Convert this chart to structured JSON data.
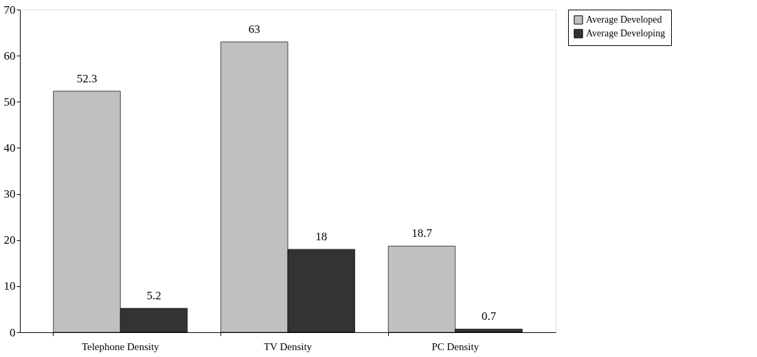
{
  "chart_data": {
    "type": "bar",
    "categories": [
      "Telephone Density",
      "TV Density",
      "PC Density"
    ],
    "series": [
      {
        "name": "Average Developed",
        "color": "#c0c0c0",
        "values": [
          52.3,
          63,
          18.7
        ]
      },
      {
        "name": "Average Developing",
        "color": "#333333",
        "values": [
          5.2,
          18,
          0.7
        ]
      }
    ],
    "ylim": [
      0,
      70
    ],
    "yticks": [
      0,
      10,
      20,
      30,
      40,
      50,
      60,
      70
    ],
    "grid": false,
    "legend": "top right",
    "data_labels": true
  }
}
